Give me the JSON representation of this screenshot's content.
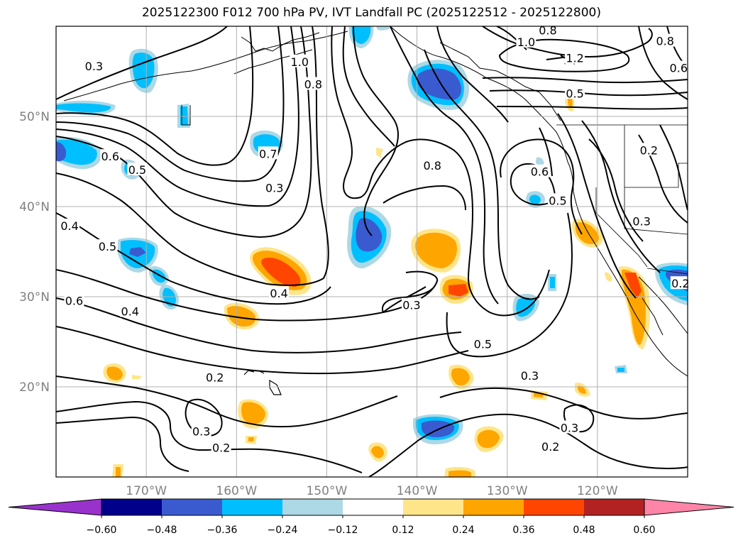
{
  "title": "2025122300 F012 700 hPa PV, IVT Landfall PC (2025122512 - 2025122800)",
  "map": {
    "projection": "PlateCarree",
    "lon_range": [
      -180,
      -110
    ],
    "lat_range": [
      10,
      60
    ],
    "lon_ticks": [
      {
        "lon": -170,
        "label": "170°W"
      },
      {
        "lon": -160,
        "label": "160°W"
      },
      {
        "lon": -150,
        "label": "150°W"
      },
      {
        "lon": -140,
        "label": "140°W"
      },
      {
        "lon": -130,
        "label": "130°W"
      },
      {
        "lon": -120,
        "label": "120°W"
      }
    ],
    "lat_ticks": [
      {
        "lat": 20,
        "label": "20°N"
      },
      {
        "lat": 30,
        "label": "30°N"
      },
      {
        "lat": 40,
        "label": "40°N"
      },
      {
        "lat": 50,
        "label": "50°N"
      }
    ],
    "grid": true
  },
  "fill_colors": {
    "neg_060_below": "#9932cc",
    "neg_060_048": "#00008b",
    "neg_048_036": "#3a5bd0",
    "neg_036_024": "#00bfff",
    "neg_024_012": "#add8e6",
    "pos_012_024": "#ffe58a",
    "pos_024_036": "#ffa500",
    "pos_036_048": "#ff4500",
    "pos_048_060": "#b22222",
    "pos_060_above": "#ff85a8"
  },
  "contour_labels": [
    {
      "text": "1.0",
      "lon": -153,
      "lat": 56.0
    },
    {
      "text": "0.8",
      "lon": -151.5,
      "lat": 53.5
    },
    {
      "text": "0.3",
      "lon": -175.8,
      "lat": 55.5
    },
    {
      "text": "0.6",
      "lon": -174,
      "lat": 45.5
    },
    {
      "text": "0.5",
      "lon": -171,
      "lat": 44.0
    },
    {
      "text": "0.4",
      "lon": -178.5,
      "lat": 37.8
    },
    {
      "text": "0.5",
      "lon": -174.3,
      "lat": 35.5
    },
    {
      "text": "0.6",
      "lon": -178,
      "lat": 29.5
    },
    {
      "text": "0.4",
      "lon": -171.8,
      "lat": 28.3
    },
    {
      "text": "0.7",
      "lon": -156.5,
      "lat": 45.8
    },
    {
      "text": "0.3",
      "lon": -155.8,
      "lat": 42.0
    },
    {
      "text": "0.4",
      "lon": -155.3,
      "lat": 30.3
    },
    {
      "text": "0.8",
      "lon": -138.3,
      "lat": 44.5
    },
    {
      "text": "0.3",
      "lon": -140.6,
      "lat": 29.0
    },
    {
      "text": "0.5",
      "lon": -132.7,
      "lat": 24.7
    },
    {
      "text": "0.3",
      "lon": -127.5,
      "lat": 21.2
    },
    {
      "text": "0.2",
      "lon": -162.4,
      "lat": 21.0
    },
    {
      "text": "0.3",
      "lon": -163.9,
      "lat": 15.0
    },
    {
      "text": "0.2",
      "lon": -161.7,
      "lat": 13.2
    },
    {
      "text": "0.6",
      "lon": -126.4,
      "lat": 43.8
    },
    {
      "text": "0.5",
      "lon": -124.4,
      "lat": 40.6
    },
    {
      "text": "0.3",
      "lon": -123.1,
      "lat": 15.4
    },
    {
      "text": "0.2",
      "lon": -125.2,
      "lat": 13.3
    },
    {
      "text": "1.0",
      "lon": -127.9,
      "lat": 58.2
    },
    {
      "text": "0.8",
      "lon": -125.5,
      "lat": 59.5
    },
    {
      "text": "1.2",
      "lon": -122.5,
      "lat": 56.4
    },
    {
      "text": "0.5",
      "lon": -122.5,
      "lat": 52.5
    },
    {
      "text": "0.8",
      "lon": -112.5,
      "lat": 58.3
    },
    {
      "text": "0.6",
      "lon": -111,
      "lat": 55.3
    },
    {
      "text": "0.2",
      "lon": -114.3,
      "lat": 46.2
    },
    {
      "text": "0.3",
      "lon": -115.1,
      "lat": 38.3
    },
    {
      "text": "0.2",
      "lon": -110.8,
      "lat": 31.4
    }
  ],
  "colorbar": {
    "boundaries": [
      -0.6,
      -0.48,
      -0.36,
      -0.24,
      -0.12,
      0.12,
      0.24,
      0.36,
      0.48,
      0.6
    ],
    "tick_labels": [
      "−0.60",
      "−0.48",
      "−0.36",
      "−0.24",
      "−0.12",
      "0.12",
      "0.24",
      "0.36",
      "0.48",
      "0.60"
    ],
    "extend": "both"
  }
}
